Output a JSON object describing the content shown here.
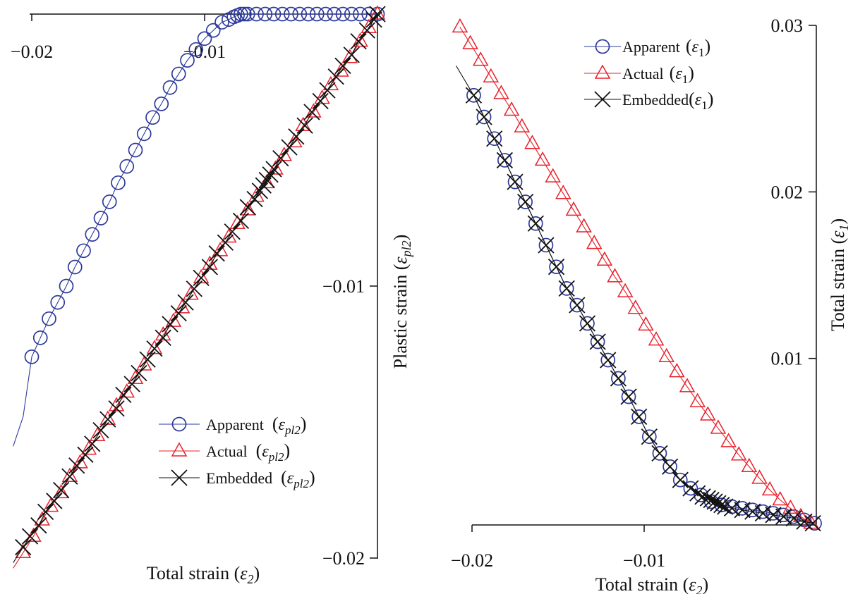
{
  "colors": {
    "apparent": "#2e3a9c",
    "actual": "#e8202a",
    "embedded": "#111111",
    "axis": "#111111"
  },
  "chart_data": [
    {
      "type": "line",
      "xlabel": {
        "main": "Total strain (",
        "sym": "ε",
        "sub": "2",
        "close": ")"
      },
      "ylabel": {
        "main": "Plastic strain (",
        "sym": "ε",
        "sub": "pl2",
        "close": ")"
      },
      "xlim": [
        -0.02,
        0
      ],
      "ylim": [
        -0.02,
        0
      ],
      "x_ticks": [
        {
          "v": -0.02,
          "label": "−0.02"
        },
        {
          "v": -0.01,
          "label": "−0.01"
        }
      ],
      "y_ticks": [
        {
          "v": -0.01,
          "label": "−0.01"
        },
        {
          "v": -0.02,
          "label": "−0.02"
        }
      ],
      "legend": "bottom-right",
      "series": [
        {
          "name": "Apparent",
          "legend_sym": "ε",
          "legend_sub": "pl2",
          "marker": "circle",
          "color_key": "apparent",
          "x": [
            -0.0205,
            -0.02,
            -0.0195,
            -0.019,
            -0.0185,
            -0.018,
            -0.0175,
            -0.017,
            -0.0165,
            -0.016,
            -0.0155,
            -0.015,
            -0.0145,
            -0.014,
            -0.0135,
            -0.013,
            -0.0125,
            -0.012,
            -0.0115,
            -0.011,
            -0.0105,
            -0.01,
            -0.0095,
            -0.009,
            -0.0086,
            -0.0083,
            -0.0081,
            -0.0079,
            -0.0077,
            -0.0075,
            -0.007,
            -0.0065,
            -0.006,
            -0.0055,
            -0.005,
            -0.0045,
            -0.004,
            -0.0035,
            -0.003,
            -0.0025,
            -0.002,
            -0.0015,
            -0.001,
            -0.0005,
            0
          ],
          "y": [
            -0.0148,
            -0.0126,
            -0.0119,
            -0.0112,
            -0.0106,
            -0.01,
            -0.0093,
            -0.0087,
            -0.0081,
            -0.0075,
            -0.0069,
            -0.0062,
            -0.0056,
            -0.005,
            -0.0044,
            -0.0038,
            -0.0033,
            -0.0027,
            -0.0022,
            -0.0017,
            -0.0013,
            -0.0009,
            -0.0006,
            -0.0003,
            -0.0002,
            -0.0001,
            -5e-05,
            0,
            0,
            0,
            0,
            0,
            0,
            0,
            0,
            0,
            0,
            0,
            0,
            0,
            0,
            0,
            0,
            0,
            0
          ]
        },
        {
          "name": "Actual",
          "legend_sym": "ε",
          "legend_sub": "pl2",
          "marker": "triangle",
          "color_key": "actual",
          "x": [
            -0.0205,
            -0.0199,
            -0.0194,
            -0.0189,
            -0.0183,
            -0.0178,
            -0.0172,
            -0.0167,
            -0.0162,
            -0.0156,
            -0.0151,
            -0.0145,
            -0.014,
            -0.0135,
            -0.0129,
            -0.0124,
            -0.0118,
            -0.0113,
            -0.0108,
            -0.0102,
            -0.0097,
            -0.0091,
            -0.0086,
            -0.0081,
            -0.0075,
            -0.007,
            -0.0064,
            -0.0059,
            -0.0054,
            -0.0048,
            -0.0043,
            -0.0037,
            -0.0032,
            -0.0027,
            -0.0021,
            -0.0016,
            -0.001,
            -0.0005,
            0
          ],
          "y": [
            -0.0198,
            -0.0192,
            -0.0186,
            -0.0181,
            -0.0176,
            -0.017,
            -0.0165,
            -0.016,
            -0.0155,
            -0.0149,
            -0.0144,
            -0.0139,
            -0.0134,
            -0.0129,
            -0.0123,
            -0.0118,
            -0.0113,
            -0.0108,
            -0.0103,
            -0.0097,
            -0.0092,
            -0.0087,
            -0.0082,
            -0.0077,
            -0.0072,
            -0.0067,
            -0.0062,
            -0.0057,
            -0.0052,
            -0.0047,
            -0.0041,
            -0.0036,
            -0.0031,
            -0.0026,
            -0.0021,
            -0.0016,
            -0.001,
            -0.0005,
            0
          ]
        },
        {
          "name": "Embedded",
          "legend_sym": "ε",
          "legend_sub": "pl2",
          "marker": "cross",
          "color_key": "embedded",
          "x": [
            -0.0205,
            -0.0201,
            -0.0196,
            -0.0192,
            -0.0187,
            -0.0183,
            -0.0178,
            -0.0174,
            -0.0169,
            -0.0165,
            -0.016,
            -0.0156,
            -0.0151,
            -0.0147,
            -0.0142,
            -0.0138,
            -0.0133,
            -0.0129,
            -0.0124,
            -0.012,
            -0.0115,
            -0.0111,
            -0.0106,
            -0.0102,
            -0.0097,
            -0.0093,
            -0.0088,
            -0.0084,
            -0.0079,
            -0.0075,
            -0.0071,
            -0.0068,
            -0.0066,
            -0.0064,
            -0.0062,
            -0.006,
            -0.0056,
            -0.0051,
            -0.0047,
            -0.0042,
            -0.0038,
            -0.0033,
            -0.0029,
            -0.0024,
            -0.002,
            -0.0015,
            -0.0011,
            -0.0006,
            -0.0002,
            0
          ],
          "y": [
            -0.0196,
            -0.0192,
            -0.0188,
            -0.0183,
            -0.0179,
            -0.0175,
            -0.017,
            -0.0166,
            -0.0162,
            -0.0158,
            -0.0153,
            -0.0149,
            -0.0145,
            -0.014,
            -0.0136,
            -0.0132,
            -0.0127,
            -0.0123,
            -0.0119,
            -0.0114,
            -0.011,
            -0.0106,
            -0.0101,
            -0.0097,
            -0.0093,
            -0.0088,
            -0.0084,
            -0.008,
            -0.0076,
            -0.0071,
            -0.0068,
            -0.0065,
            -0.0063,
            -0.0061,
            -0.0059,
            -0.0057,
            -0.0053,
            -0.0049,
            -0.0045,
            -0.0041,
            -0.0036,
            -0.0032,
            -0.0028,
            -0.0023,
            -0.0019,
            -0.0015,
            -0.001,
            -0.0006,
            -0.0002,
            0
          ]
        }
      ]
    },
    {
      "type": "line",
      "xlabel": {
        "main": "Total strain (",
        "sym": "ε",
        "sub": "2",
        "close": ")"
      },
      "ylabel": {
        "main": "Total strain (",
        "sym": "ε",
        "sub": "1",
        "close": ")"
      },
      "xlim": [
        -0.02,
        0
      ],
      "ylim": [
        0,
        0.03
      ],
      "x_ticks": [
        {
          "v": -0.02,
          "label": "−0.02"
        },
        {
          "v": -0.01,
          "label": "−0.01"
        }
      ],
      "y_ticks": [
        {
          "v": 0.01,
          "label": "0.01"
        },
        {
          "v": 0.02,
          "label": "0.02"
        },
        {
          "v": 0.03,
          "label": "0.03"
        }
      ],
      "legend": "top-left",
      "series": [
        {
          "name": "Apparent",
          "legend_sym": "ε",
          "legend_sub": "1",
          "marker": "circle",
          "color_key": "apparent",
          "x": [
            -0.0199,
            -0.0193,
            -0.0187,
            -0.0181,
            -0.0175,
            -0.0169,
            -0.0163,
            -0.0157,
            -0.0151,
            -0.0145,
            -0.0139,
            -0.0133,
            -0.0127,
            -0.0121,
            -0.0115,
            -0.0109,
            -0.0103,
            -0.0097,
            -0.0091,
            -0.0085,
            -0.0079,
            -0.0073,
            -0.0067,
            -0.0061,
            -0.0055,
            -0.0049,
            -0.0043,
            -0.0037,
            -0.0031,
            -0.0025,
            -0.0019,
            -0.0013,
            -0.0007,
            -0.0001
          ],
          "y": [
            0.0258,
            0.0245,
            0.0232,
            0.0219,
            0.0206,
            0.0194,
            0.0181,
            0.0168,
            0.0155,
            0.0142,
            0.0132,
            0.0121,
            0.011,
            0.0099,
            0.0088,
            0.0077,
            0.0065,
            0.0053,
            0.0043,
            0.0035,
            0.0027,
            0.0022,
            0.0018,
            0.0014,
            0.0012,
            0.0011,
            0.001,
            0.0009,
            0.0008,
            0.0007,
            0.0006,
            0.0005,
            0.0003,
            0.0001
          ]
        },
        {
          "name": "Actual",
          "legend_sym": "ε",
          "legend_sub": "1",
          "marker": "triangle",
          "color_key": "actual",
          "x": [
            -0.0207,
            -0.0201,
            -0.0195,
            -0.0189,
            -0.0183,
            -0.0177,
            -0.0171,
            -0.0165,
            -0.0159,
            -0.0153,
            -0.0147,
            -0.0141,
            -0.0135,
            -0.0129,
            -0.0123,
            -0.0117,
            -0.0111,
            -0.0105,
            -0.0099,
            -0.0093,
            -0.0087,
            -0.0081,
            -0.0075,
            -0.0069,
            -0.0063,
            -0.0057,
            -0.0051,
            -0.0045,
            -0.0039,
            -0.0033,
            -0.0027,
            -0.0021,
            -0.0015,
            -0.0009,
            -0.0003
          ],
          "y": [
            0.0299,
            0.0289,
            0.0279,
            0.0269,
            0.0259,
            0.0249,
            0.0239,
            0.0229,
            0.0219,
            0.0209,
            0.0199,
            0.0189,
            0.0179,
            0.0169,
            0.0159,
            0.0149,
            0.014,
            0.013,
            0.012,
            0.0111,
            0.0101,
            0.0092,
            0.0083,
            0.0074,
            0.0066,
            0.0058,
            0.005,
            0.0042,
            0.0035,
            0.0028,
            0.0021,
            0.0015,
            0.001,
            0.0005,
            0.0001
          ]
        },
        {
          "name": "Embedded",
          "legend_sym": "ε",
          "legend_sub": "1",
          "marker": "cross",
          "color_key": "embedded",
          "x": [
            -0.0199,
            -0.0193,
            -0.0187,
            -0.0181,
            -0.0175,
            -0.0169,
            -0.0163,
            -0.0157,
            -0.0151,
            -0.0145,
            -0.0139,
            -0.0133,
            -0.0127,
            -0.0121,
            -0.0115,
            -0.0109,
            -0.0103,
            -0.0097,
            -0.0091,
            -0.0085,
            -0.0079,
            -0.0073,
            -0.0069,
            -0.0066,
            -0.0063,
            -0.0061,
            -0.0059,
            -0.0057,
            -0.0055,
            -0.0053,
            -0.0049,
            -0.0043,
            -0.0037,
            -0.0031,
            -0.0025,
            -0.0019,
            -0.0013,
            -0.0007,
            -0.0002
          ],
          "y": [
            0.0258,
            0.0245,
            0.0232,
            0.0219,
            0.0206,
            0.0194,
            0.0181,
            0.0168,
            0.0155,
            0.0142,
            0.0132,
            0.0121,
            0.011,
            0.0099,
            0.0088,
            0.0077,
            0.0065,
            0.0053,
            0.0043,
            0.0035,
            0.0027,
            0.0022,
            0.0019,
            0.0017,
            0.0016,
            0.0015,
            0.0014,
            0.0013,
            0.0012,
            0.0011,
            0.001,
            0.0009,
            0.0008,
            0.0007,
            0.0006,
            0.0005,
            0.0004,
            0.0002,
            0.0001
          ]
        }
      ]
    }
  ]
}
